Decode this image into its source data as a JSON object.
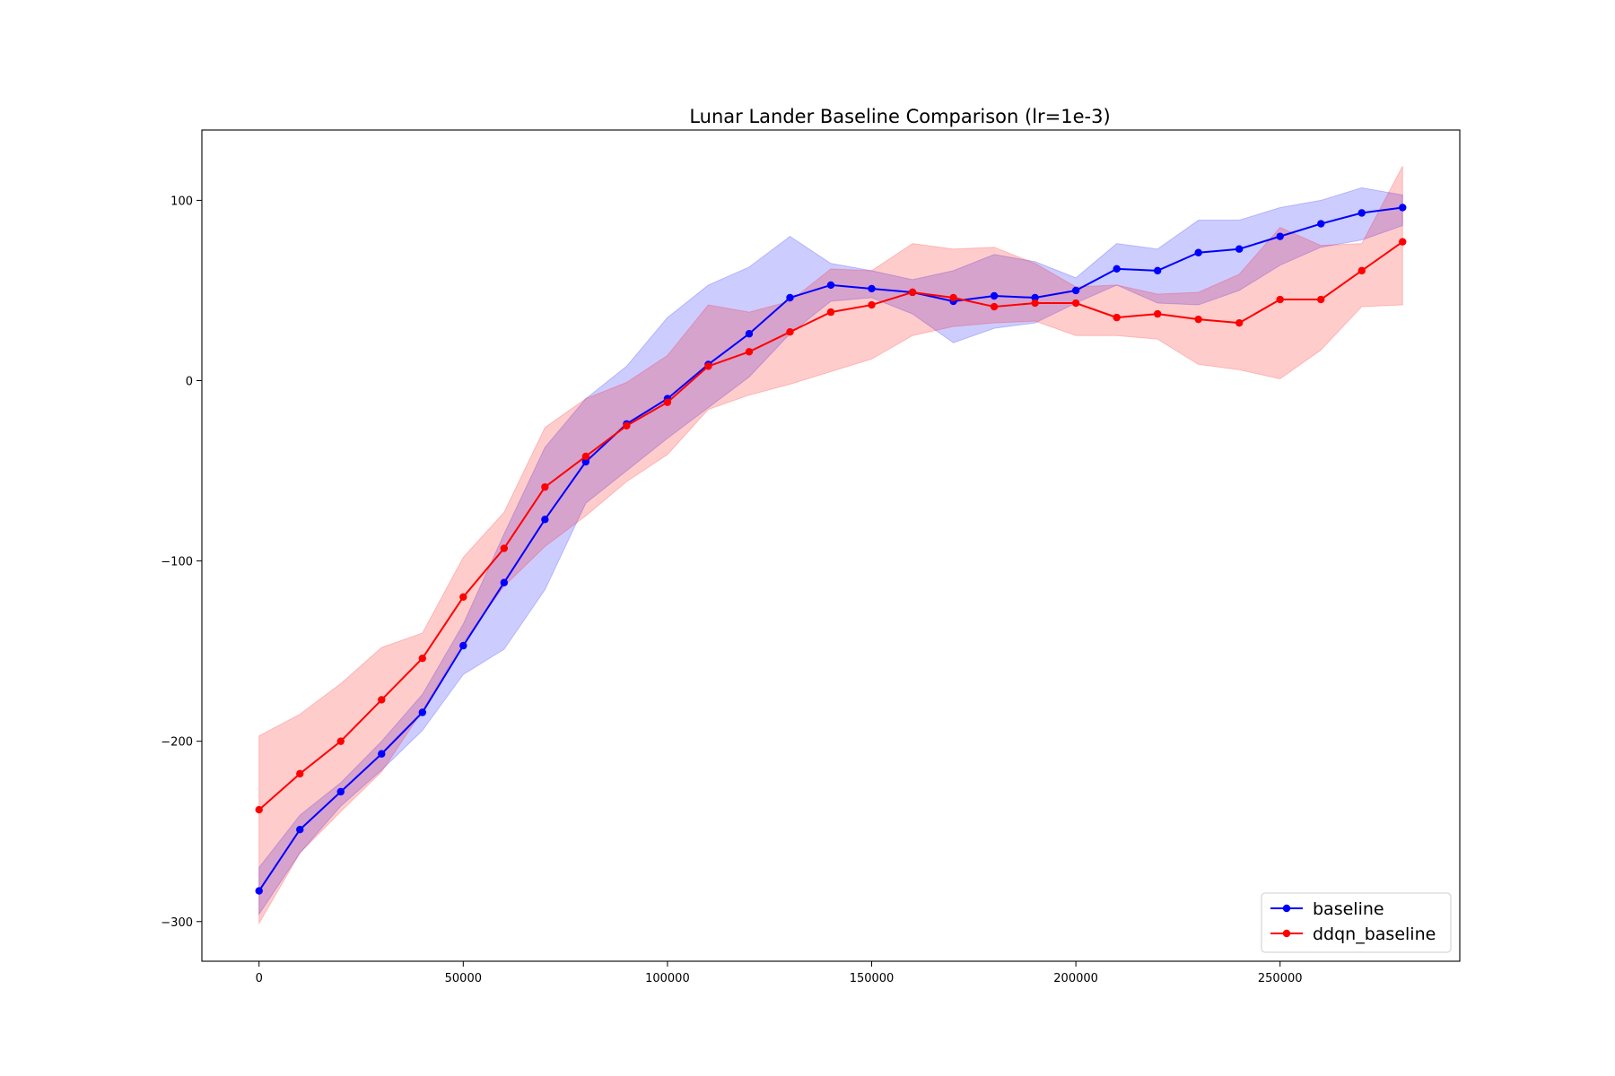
{
  "chart_data": {
    "type": "line",
    "title": "Lunar Lander Baseline Comparison (lr=1e-3)",
    "xlabel": "",
    "ylabel": "",
    "xlim": [
      -14000,
      294000
    ],
    "ylim": [
      -322,
      139
    ],
    "xticks": [
      0,
      50000,
      100000,
      150000,
      200000,
      250000
    ],
    "yticks": [
      100,
      0,
      -100,
      -200,
      -300
    ],
    "xtick_labels": [
      "0",
      "50000",
      "100000",
      "150000",
      "200000",
      "250000"
    ],
    "ytick_labels": [
      "100",
      "0",
      "−100",
      "−200",
      "−300"
    ],
    "grid": false,
    "legend_position": "bottom-right",
    "x": [
      0,
      10000,
      20000,
      30000,
      40000,
      50000,
      60000,
      70000,
      80000,
      90000,
      100000,
      110000,
      120000,
      130000,
      140000,
      150000,
      160000,
      170000,
      180000,
      190000,
      200000,
      210000,
      220000,
      230000,
      240000,
      250000,
      260000,
      270000,
      280000
    ],
    "series": [
      {
        "name": "baseline",
        "color": "#0000ff",
        "band_color": "#0000ff",
        "values": [
          -283,
          -249,
          -228,
          -207,
          -184,
          -147,
          -112,
          -77,
          -45,
          -24,
          -10,
          9,
          26,
          46,
          53,
          51,
          49,
          44,
          47,
          46,
          50,
          62,
          61,
          71,
          73,
          80,
          87,
          93,
          96
        ],
        "upper": [
          -270,
          -241,
          -223,
          -200,
          -174,
          -135,
          -85,
          -37,
          -10,
          8,
          35,
          53,
          63,
          80,
          65,
          61,
          56,
          61,
          70,
          66,
          57,
          76,
          73,
          89,
          89,
          96,
          100,
          107,
          103
        ],
        "lower": [
          -296,
          -262,
          -236,
          -216,
          -194,
          -163,
          -149,
          -116,
          -68,
          -50,
          -32,
          -15,
          2,
          26,
          44,
          46,
          37,
          21,
          29,
          32,
          43,
          53,
          43,
          42,
          50,
          64,
          74,
          78,
          86
        ]
      },
      {
        "name": "ddqn_baseline",
        "color": "#ff0000",
        "band_color": "#ff0000",
        "values": [
          -238,
          -218,
          -200,
          -177,
          -154,
          -120,
          -93,
          -59,
          -42,
          -25,
          -12,
          8,
          16,
          27,
          38,
          42,
          49,
          46,
          41,
          43,
          43,
          35,
          37,
          34,
          32,
          45,
          45,
          61,
          77
        ],
        "upper": [
          -197,
          -185,
          -168,
          -148,
          -140,
          -98,
          -73,
          -26,
          -10,
          -1,
          14,
          42,
          38,
          44,
          62,
          61,
          76,
          73,
          74,
          65,
          52,
          53,
          48,
          49,
          59,
          85,
          75,
          76,
          119
        ],
        "lower": [
          -301,
          -262,
          -239,
          -217,
          -183,
          -145,
          -114,
          -92,
          -75,
          -56,
          -41,
          -16,
          -8,
          -2,
          5,
          12,
          25,
          30,
          32,
          33,
          25,
          25,
          23,
          9,
          6,
          1,
          17,
          41,
          42
        ]
      }
    ]
  }
}
